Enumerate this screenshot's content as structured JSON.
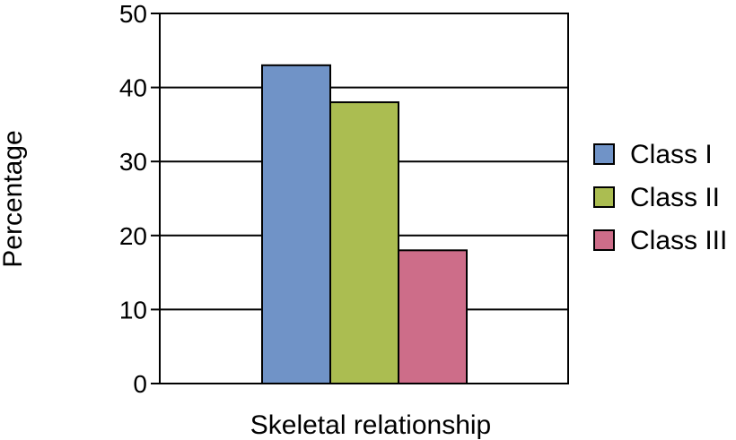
{
  "chart_data": {
    "type": "bar",
    "categories": [
      ""
    ],
    "series": [
      {
        "name": "Class I",
        "values": [
          43
        ],
        "color": "#7093C7"
      },
      {
        "name": "Class II",
        "values": [
          38
        ],
        "color": "#ABBD51"
      },
      {
        "name": "Class III",
        "values": [
          18
        ],
        "color": "#CD6D89"
      }
    ],
    "title": "",
    "xlabel": "Skeletal relationship",
    "ylabel": "Percentage",
    "ylim": [
      0,
      50
    ],
    "yticks": [
      0,
      10,
      20,
      30,
      40,
      50
    ],
    "grid": true,
    "legend": "right"
  }
}
